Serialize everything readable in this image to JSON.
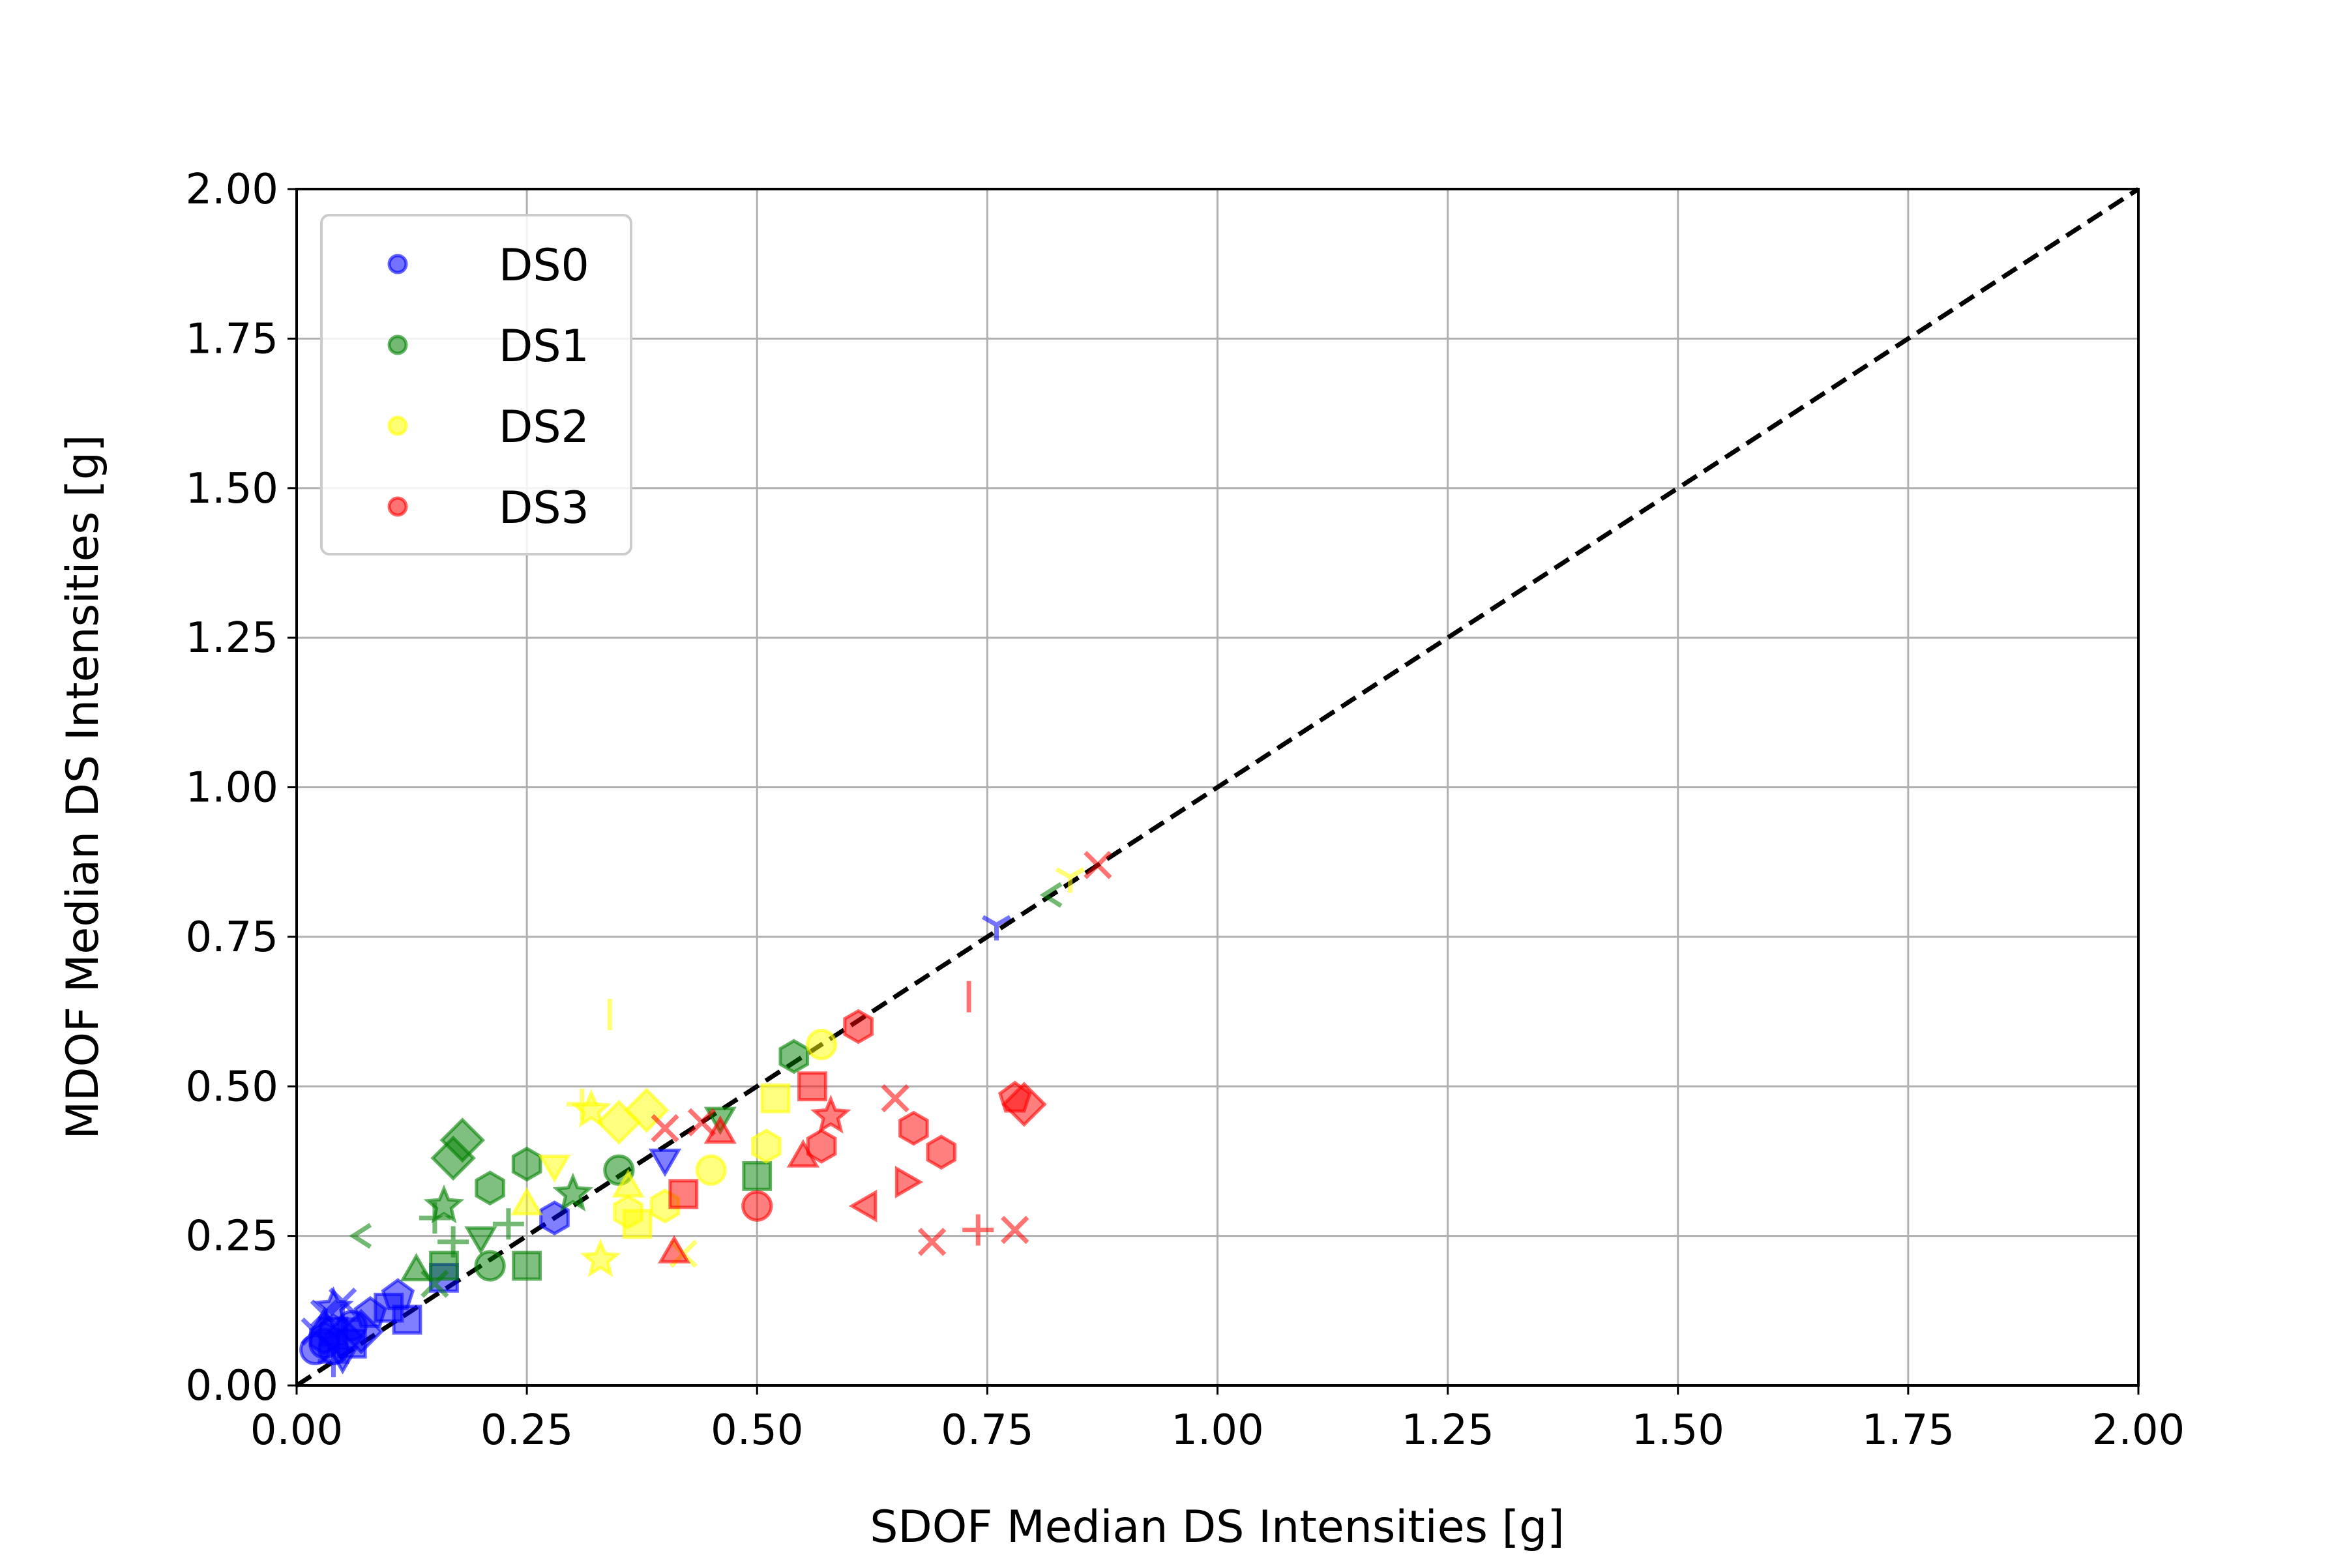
{
  "chart_data": {
    "type": "scatter",
    "title": "",
    "xlabel": "SDOF Median DS Intensities [g]",
    "ylabel": "MDOF Median DS Intensities [g]",
    "xlim": [
      0,
      2
    ],
    "ylim": [
      0,
      2
    ],
    "x_ticks": [
      "0.00",
      "0.25",
      "0.50",
      "0.75",
      "1.00",
      "1.25",
      "1.50",
      "1.75",
      "2.00"
    ],
    "y_ticks": [
      "0.00",
      "0.25",
      "0.50",
      "0.75",
      "1.00",
      "1.25",
      "1.50",
      "1.75",
      "2.00"
    ],
    "grid": true,
    "legend_position": "top-left",
    "reference_line": {
      "x": [
        0,
        2
      ],
      "y": [
        0,
        2
      ],
      "style": "dashed",
      "color": "#000000"
    },
    "series": [
      {
        "name": "DS0",
        "color": "#0000ff",
        "points": [
          {
            "x": 0.03,
            "y": 0.07,
            "m": "circle"
          },
          {
            "x": 0.04,
            "y": 0.09,
            "m": "square"
          },
          {
            "x": 0.05,
            "y": 0.08,
            "m": "diamond"
          },
          {
            "x": 0.03,
            "y": 0.1,
            "m": "triangle"
          },
          {
            "x": 0.04,
            "y": 0.06,
            "m": "circle"
          },
          {
            "x": 0.02,
            "y": 0.09,
            "m": "x"
          },
          {
            "x": 0.05,
            "y": 0.11,
            "m": "plus"
          },
          {
            "x": 0.03,
            "y": 0.12,
            "m": "x"
          },
          {
            "x": 0.06,
            "y": 0.07,
            "m": "square"
          },
          {
            "x": 0.04,
            "y": 0.13,
            "m": "star"
          },
          {
            "x": 0.05,
            "y": 0.05,
            "m": "triangle-down"
          },
          {
            "x": 0.03,
            "y": 0.08,
            "m": "hexagon"
          },
          {
            "x": 0.06,
            "y": 0.1,
            "m": "circle"
          },
          {
            "x": 0.04,
            "y": 0.04,
            "m": "plus"
          },
          {
            "x": 0.07,
            "y": 0.09,
            "m": "diamond"
          },
          {
            "x": 0.02,
            "y": 0.06,
            "m": "circle"
          },
          {
            "x": 0.08,
            "y": 0.12,
            "m": "pentagon"
          },
          {
            "x": 0.05,
            "y": 0.14,
            "m": "x"
          },
          {
            "x": 0.1,
            "y": 0.13,
            "m": "square"
          },
          {
            "x": 0.11,
            "y": 0.15,
            "m": "pentagon"
          },
          {
            "x": 0.12,
            "y": 0.11,
            "m": "square"
          },
          {
            "x": 0.16,
            "y": 0.18,
            "m": "square"
          },
          {
            "x": 0.28,
            "y": 0.28,
            "m": "hexagon"
          },
          {
            "x": 0.4,
            "y": 0.38,
            "m": "triangle-down"
          },
          {
            "x": 0.76,
            "y": 0.77,
            "m": "tri"
          }
        ]
      },
      {
        "name": "DS1",
        "color": "#008000",
        "points": [
          {
            "x": 0.07,
            "y": 0.25,
            "m": "caret-left"
          },
          {
            "x": 0.15,
            "y": 0.28,
            "m": "plus"
          },
          {
            "x": 0.16,
            "y": 0.3,
            "m": "star"
          },
          {
            "x": 0.17,
            "y": 0.38,
            "m": "diamond"
          },
          {
            "x": 0.18,
            "y": 0.41,
            "m": "diamond"
          },
          {
            "x": 0.13,
            "y": 0.19,
            "m": "triangle"
          },
          {
            "x": 0.15,
            "y": 0.17,
            "m": "x"
          },
          {
            "x": 0.17,
            "y": 0.24,
            "m": "plus"
          },
          {
            "x": 0.16,
            "y": 0.2,
            "m": "square"
          },
          {
            "x": 0.21,
            "y": 0.33,
            "m": "hexagon"
          },
          {
            "x": 0.25,
            "y": 0.37,
            "m": "hexagon"
          },
          {
            "x": 0.21,
            "y": 0.2,
            "m": "circle"
          },
          {
            "x": 0.25,
            "y": 0.2,
            "m": "square"
          },
          {
            "x": 0.2,
            "y": 0.25,
            "m": "triangle-down"
          },
          {
            "x": 0.23,
            "y": 0.27,
            "m": "plus"
          },
          {
            "x": 0.3,
            "y": 0.32,
            "m": "star"
          },
          {
            "x": 0.35,
            "y": 0.36,
            "m": "circle"
          },
          {
            "x": 0.46,
            "y": 0.45,
            "m": "triangle-down"
          },
          {
            "x": 0.5,
            "y": 0.35,
            "m": "square"
          },
          {
            "x": 0.54,
            "y": 0.55,
            "m": "hexagon"
          },
          {
            "x": 0.82,
            "y": 0.82,
            "m": "caret-left"
          }
        ]
      },
      {
        "name": "DS2",
        "color": "#ffff00",
        "points": [
          {
            "x": 0.25,
            "y": 0.3,
            "m": "triangle"
          },
          {
            "x": 0.28,
            "y": 0.37,
            "m": "triangle-down"
          },
          {
            "x": 0.31,
            "y": 0.47,
            "m": "plus"
          },
          {
            "x": 0.32,
            "y": 0.46,
            "m": "star"
          },
          {
            "x": 0.33,
            "y": 0.21,
            "m": "star"
          },
          {
            "x": 0.34,
            "y": 0.62,
            "m": "vline"
          },
          {
            "x": 0.35,
            "y": 0.44,
            "m": "diamond"
          },
          {
            "x": 0.36,
            "y": 0.29,
            "m": "hexagon"
          },
          {
            "x": 0.37,
            "y": 0.27,
            "m": "square"
          },
          {
            "x": 0.38,
            "y": 0.46,
            "m": "diamond"
          },
          {
            "x": 0.36,
            "y": 0.33,
            "m": "triangle"
          },
          {
            "x": 0.42,
            "y": 0.22,
            "m": "x"
          },
          {
            "x": 0.4,
            "y": 0.3,
            "m": "hexagon"
          },
          {
            "x": 0.45,
            "y": 0.36,
            "m": "circle"
          },
          {
            "x": 0.51,
            "y": 0.4,
            "m": "hexagon"
          },
          {
            "x": 0.52,
            "y": 0.48,
            "m": "square"
          },
          {
            "x": 0.57,
            "y": 0.57,
            "m": "circle"
          },
          {
            "x": 0.84,
            "y": 0.85,
            "m": "tri"
          }
        ]
      },
      {
        "name": "DS3",
        "color": "#ff0000",
        "points": [
          {
            "x": 0.41,
            "y": 0.22,
            "m": "triangle"
          },
          {
            "x": 0.42,
            "y": 0.32,
            "m": "square"
          },
          {
            "x": 0.4,
            "y": 0.43,
            "m": "x"
          },
          {
            "x": 0.44,
            "y": 0.44,
            "m": "x"
          },
          {
            "x": 0.46,
            "y": 0.42,
            "m": "triangle"
          },
          {
            "x": 0.5,
            "y": 0.3,
            "m": "circle"
          },
          {
            "x": 0.55,
            "y": 0.38,
            "m": "triangle"
          },
          {
            "x": 0.56,
            "y": 0.5,
            "m": "square"
          },
          {
            "x": 0.57,
            "y": 0.4,
            "m": "hexagon"
          },
          {
            "x": 0.58,
            "y": 0.45,
            "m": "star"
          },
          {
            "x": 0.61,
            "y": 0.6,
            "m": "hexagon"
          },
          {
            "x": 0.62,
            "y": 0.3,
            "m": "triangle-left"
          },
          {
            "x": 0.66,
            "y": 0.34,
            "m": "triangle-right"
          },
          {
            "x": 0.65,
            "y": 0.48,
            "m": "x"
          },
          {
            "x": 0.67,
            "y": 0.43,
            "m": "hexagon"
          },
          {
            "x": 0.69,
            "y": 0.24,
            "m": "x"
          },
          {
            "x": 0.7,
            "y": 0.39,
            "m": "hexagon"
          },
          {
            "x": 0.73,
            "y": 0.65,
            "m": "vline"
          },
          {
            "x": 0.74,
            "y": 0.26,
            "m": "plus"
          },
          {
            "x": 0.78,
            "y": 0.26,
            "m": "x"
          },
          {
            "x": 0.78,
            "y": 0.48,
            "m": "pentagon"
          },
          {
            "x": 0.79,
            "y": 0.47,
            "m": "diamond"
          },
          {
            "x": 0.87,
            "y": 0.87,
            "m": "x"
          }
        ]
      }
    ]
  }
}
